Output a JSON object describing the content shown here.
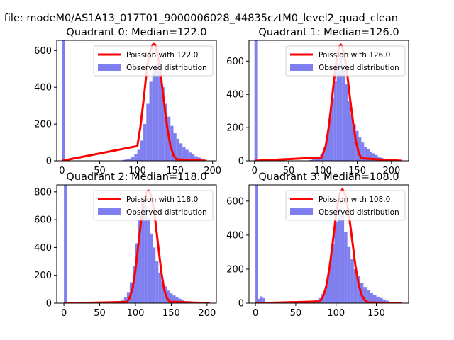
{
  "figure": {
    "suptitle": "n file: modeM0/AS1A13_017T01_9000006028_44835cztM0_level2_quad_clean"
  },
  "colors": {
    "histogram": "#7f7ff0",
    "poisson_line": "#ff0000",
    "axes": "#000000",
    "background": "#ffffff"
  },
  "chart_data": [
    {
      "type": "bar",
      "title": "Quadrant 0: Median=122.0",
      "xlabel": "",
      "ylabel": "",
      "xlim": [
        -7,
        205
      ],
      "ylim": [
        0,
        655
      ],
      "xticks": [
        0,
        50,
        100,
        150,
        200
      ],
      "yticks": [
        0,
        200,
        400,
        600
      ],
      "legend_position": "upper right",
      "series": [
        {
          "name": "Poission with 122.0",
          "type": "line",
          "mean": 122.0,
          "x": [
            0,
            100,
            104,
            108,
            112,
            116,
            120,
            122,
            124,
            128,
            132,
            136,
            140,
            144,
            148,
            152,
            192
          ],
          "y": [
            0,
            80,
            180,
            320,
            470,
            585,
            630,
            635,
            630,
            560,
            440,
            300,
            175,
            80,
            30,
            8,
            0
          ]
        },
        {
          "name": "Observed distribution",
          "type": "histogram",
          "bins": [
            {
              "x0": 0,
              "x1": 4,
              "count": 655
            },
            {
              "x0": 80,
              "x1": 84,
              "count": 5
            },
            {
              "x0": 84,
              "x1": 88,
              "count": 8
            },
            {
              "x0": 88,
              "x1": 92,
              "count": 12
            },
            {
              "x0": 92,
              "x1": 96,
              "count": 22
            },
            {
              "x0": 96,
              "x1": 100,
              "count": 35
            },
            {
              "x0": 100,
              "x1": 104,
              "count": 60
            },
            {
              "x0": 104,
              "x1": 108,
              "count": 110
            },
            {
              "x0": 108,
              "x1": 112,
              "count": 200
            },
            {
              "x0": 112,
              "x1": 116,
              "count": 310
            },
            {
              "x0": 116,
              "x1": 120,
              "count": 430
            },
            {
              "x0": 120,
              "x1": 124,
              "count": 510
            },
            {
              "x0": 124,
              "x1": 128,
              "count": 530
            },
            {
              "x0": 128,
              "x1": 132,
              "count": 480
            },
            {
              "x0": 132,
              "x1": 136,
              "count": 400
            },
            {
              "x0": 136,
              "x1": 140,
              "count": 310
            },
            {
              "x0": 140,
              "x1": 144,
              "count": 240
            },
            {
              "x0": 144,
              "x1": 148,
              "count": 190
            },
            {
              "x0": 148,
              "x1": 152,
              "count": 150
            },
            {
              "x0": 152,
              "x1": 156,
              "count": 120
            },
            {
              "x0": 156,
              "x1": 160,
              "count": 95
            },
            {
              "x0": 160,
              "x1": 164,
              "count": 75
            },
            {
              "x0": 164,
              "x1": 168,
              "count": 60
            },
            {
              "x0": 168,
              "x1": 172,
              "count": 45
            },
            {
              "x0": 172,
              "x1": 176,
              "count": 35
            },
            {
              "x0": 176,
              "x1": 180,
              "count": 25
            },
            {
              "x0": 180,
              "x1": 184,
              "count": 18
            },
            {
              "x0": 184,
              "x1": 188,
              "count": 12
            },
            {
              "x0": 188,
              "x1": 192,
              "count": 6
            }
          ]
        }
      ]
    },
    {
      "type": "bar",
      "title": "Quadrant 1: Median=126.0",
      "xlabel": "",
      "ylabel": "",
      "xlim": [
        -8,
        225
      ],
      "ylim": [
        0,
        725
      ],
      "xticks": [
        0,
        50,
        100,
        150,
        200
      ],
      "yticks": [
        0,
        200,
        400,
        600
      ],
      "legend_position": "upper right",
      "series": [
        {
          "name": "Poission with 126.0",
          "type": "line",
          "mean": 126.0,
          "x": [
            0,
            98,
            104,
            108,
            112,
            116,
            120,
            124,
            126,
            128,
            132,
            136,
            140,
            144,
            148,
            152,
            156,
            215
          ],
          "y": [
            0,
            20,
            90,
            190,
            330,
            480,
            610,
            690,
            700,
            690,
            620,
            500,
            360,
            230,
            120,
            50,
            15,
            0
          ]
        },
        {
          "name": "Observed distribution",
          "type": "histogram",
          "bins": [
            {
              "x0": 0,
              "x1": 4,
              "count": 725
            },
            {
              "x0": 80,
              "x1": 84,
              "count": 5
            },
            {
              "x0": 84,
              "x1": 88,
              "count": 8
            },
            {
              "x0": 88,
              "x1": 92,
              "count": 15
            },
            {
              "x0": 92,
              "x1": 96,
              "count": 25
            },
            {
              "x0": 96,
              "x1": 100,
              "count": 40
            },
            {
              "x0": 100,
              "x1": 104,
              "count": 80
            },
            {
              "x0": 104,
              "x1": 108,
              "count": 140
            },
            {
              "x0": 108,
              "x1": 112,
              "count": 250
            },
            {
              "x0": 112,
              "x1": 116,
              "count": 380
            },
            {
              "x0": 116,
              "x1": 120,
              "count": 480
            },
            {
              "x0": 120,
              "x1": 124,
              "count": 580
            },
            {
              "x0": 124,
              "x1": 128,
              "count": 650
            },
            {
              "x0": 128,
              "x1": 132,
              "count": 560
            },
            {
              "x0": 132,
              "x1": 136,
              "count": 460
            },
            {
              "x0": 136,
              "x1": 140,
              "count": 360
            },
            {
              "x0": 140,
              "x1": 144,
              "count": 280
            },
            {
              "x0": 144,
              "x1": 148,
              "count": 220
            },
            {
              "x0": 148,
              "x1": 152,
              "count": 180
            },
            {
              "x0": 152,
              "x1": 156,
              "count": 140
            },
            {
              "x0": 156,
              "x1": 160,
              "count": 110
            },
            {
              "x0": 160,
              "x1": 164,
              "count": 85
            },
            {
              "x0": 164,
              "x1": 168,
              "count": 70
            },
            {
              "x0": 168,
              "x1": 172,
              "count": 55
            },
            {
              "x0": 172,
              "x1": 176,
              "count": 45
            },
            {
              "x0": 176,
              "x1": 180,
              "count": 35
            },
            {
              "x0": 180,
              "x1": 184,
              "count": 25
            },
            {
              "x0": 184,
              "x1": 188,
              "count": 18
            },
            {
              "x0": 188,
              "x1": 192,
              "count": 12
            },
            {
              "x0": 192,
              "x1": 196,
              "count": 8
            },
            {
              "x0": 196,
              "x1": 200,
              "count": 5
            }
          ]
        }
      ]
    },
    {
      "type": "bar",
      "title": "Quadrant 2: Median=118.0",
      "xlabel": "",
      "ylabel": "",
      "xlim": [
        -10,
        213
      ],
      "ylim": [
        0,
        850
      ],
      "xticks": [
        0,
        50,
        100,
        150,
        200
      ],
      "yticks": [
        0,
        200,
        400,
        600,
        800
      ],
      "legend_position": "upper right",
      "series": [
        {
          "name": "Poission with 118.0",
          "type": "line",
          "mean": 118.0,
          "x": [
            0,
            88,
            92,
            96,
            100,
            104,
            108,
            112,
            116,
            118,
            120,
            124,
            128,
            132,
            136,
            140,
            144,
            148,
            204
          ],
          "y": [
            0,
            8,
            40,
            110,
            240,
            420,
            600,
            740,
            800,
            810,
            800,
            730,
            580,
            400,
            230,
            100,
            35,
            10,
            0
          ]
        },
        {
          "name": "Observed distribution",
          "type": "histogram",
          "bins": [
            {
              "x0": 0,
              "x1": 4,
              "count": 850
            },
            {
              "x0": 72,
              "x1": 76,
              "count": 5
            },
            {
              "x0": 76,
              "x1": 80,
              "count": 10
            },
            {
              "x0": 80,
              "x1": 84,
              "count": 20
            },
            {
              "x0": 84,
              "x1": 88,
              "count": 40
            },
            {
              "x0": 88,
              "x1": 92,
              "count": 80
            },
            {
              "x0": 92,
              "x1": 96,
              "count": 150
            },
            {
              "x0": 96,
              "x1": 100,
              "count": 270
            },
            {
              "x0": 100,
              "x1": 104,
              "count": 430
            },
            {
              "x0": 104,
              "x1": 108,
              "count": 600
            },
            {
              "x0": 108,
              "x1": 112,
              "count": 720
            },
            {
              "x0": 112,
              "x1": 116,
              "count": 700
            },
            {
              "x0": 116,
              "x1": 120,
              "count": 610
            },
            {
              "x0": 120,
              "x1": 124,
              "count": 500
            },
            {
              "x0": 124,
              "x1": 128,
              "count": 400
            },
            {
              "x0": 128,
              "x1": 132,
              "count": 300
            },
            {
              "x0": 132,
              "x1": 136,
              "count": 220
            },
            {
              "x0": 136,
              "x1": 140,
              "count": 160
            },
            {
              "x0": 140,
              "x1": 144,
              "count": 120
            },
            {
              "x0": 144,
              "x1": 148,
              "count": 90
            },
            {
              "x0": 148,
              "x1": 152,
              "count": 70
            },
            {
              "x0": 152,
              "x1": 156,
              "count": 55
            },
            {
              "x0": 156,
              "x1": 160,
              "count": 42
            },
            {
              "x0": 160,
              "x1": 164,
              "count": 32
            },
            {
              "x0": 164,
              "x1": 168,
              "count": 22
            },
            {
              "x0": 168,
              "x1": 172,
              "count": 14
            },
            {
              "x0": 172,
              "x1": 176,
              "count": 8
            }
          ]
        }
      ]
    },
    {
      "type": "bar",
      "title": "Quadrant 3: Median=108.0",
      "xlabel": "",
      "ylabel": "",
      "xlim": [
        -8,
        190
      ],
      "ylim": [
        0,
        695
      ],
      "xticks": [
        0,
        50,
        100,
        150
      ],
      "yticks": [
        0,
        200,
        400,
        600
      ],
      "legend_position": "upper right",
      "series": [
        {
          "name": "Poission with 108.0",
          "type": "line",
          "mean": 108.0,
          "x": [
            0,
            80,
            84,
            88,
            92,
            96,
            100,
            104,
            108,
            112,
            116,
            120,
            124,
            128,
            132,
            136,
            140,
            182
          ],
          "y": [
            0,
            10,
            40,
            100,
            210,
            360,
            520,
            640,
            670,
            630,
            520,
            370,
            220,
            110,
            45,
            15,
            4,
            0
          ]
        },
        {
          "name": "Observed distribution",
          "type": "histogram",
          "bins": [
            {
              "x0": 0,
              "x1": 3,
              "count": 695
            },
            {
              "x0": 3,
              "x1": 6,
              "count": 25
            },
            {
              "x0": 6,
              "x1": 9,
              "count": 40
            },
            {
              "x0": 9,
              "x1": 12,
              "count": 30
            },
            {
              "x0": 12,
              "x1": 15,
              "count": 8
            },
            {
              "x0": 66,
              "x1": 70,
              "count": 5
            },
            {
              "x0": 70,
              "x1": 74,
              "count": 10
            },
            {
              "x0": 74,
              "x1": 78,
              "count": 18
            },
            {
              "x0": 78,
              "x1": 82,
              "count": 30
            },
            {
              "x0": 82,
              "x1": 86,
              "count": 55
            },
            {
              "x0": 86,
              "x1": 90,
              "count": 100
            },
            {
              "x0": 90,
              "x1": 94,
              "count": 200
            },
            {
              "x0": 94,
              "x1": 98,
              "count": 350
            },
            {
              "x0": 98,
              "x1": 102,
              "count": 480
            },
            {
              "x0": 102,
              "x1": 106,
              "count": 560
            },
            {
              "x0": 106,
              "x1": 110,
              "count": 520
            },
            {
              "x0": 110,
              "x1": 114,
              "count": 420
            },
            {
              "x0": 114,
              "x1": 118,
              "count": 330
            },
            {
              "x0": 118,
              "x1": 122,
              "count": 260
            },
            {
              "x0": 122,
              "x1": 126,
              "count": 200
            },
            {
              "x0": 126,
              "x1": 130,
              "count": 160
            },
            {
              "x0": 130,
              "x1": 134,
              "count": 120
            },
            {
              "x0": 134,
              "x1": 138,
              "count": 95
            },
            {
              "x0": 138,
              "x1": 142,
              "count": 75
            },
            {
              "x0": 142,
              "x1": 146,
              "count": 60
            },
            {
              "x0": 146,
              "x1": 150,
              "count": 48
            },
            {
              "x0": 150,
              "x1": 154,
              "count": 38
            },
            {
              "x0": 154,
              "x1": 158,
              "count": 30
            },
            {
              "x0": 158,
              "x1": 162,
              "count": 22
            },
            {
              "x0": 162,
              "x1": 166,
              "count": 14
            }
          ]
        }
      ]
    }
  ]
}
